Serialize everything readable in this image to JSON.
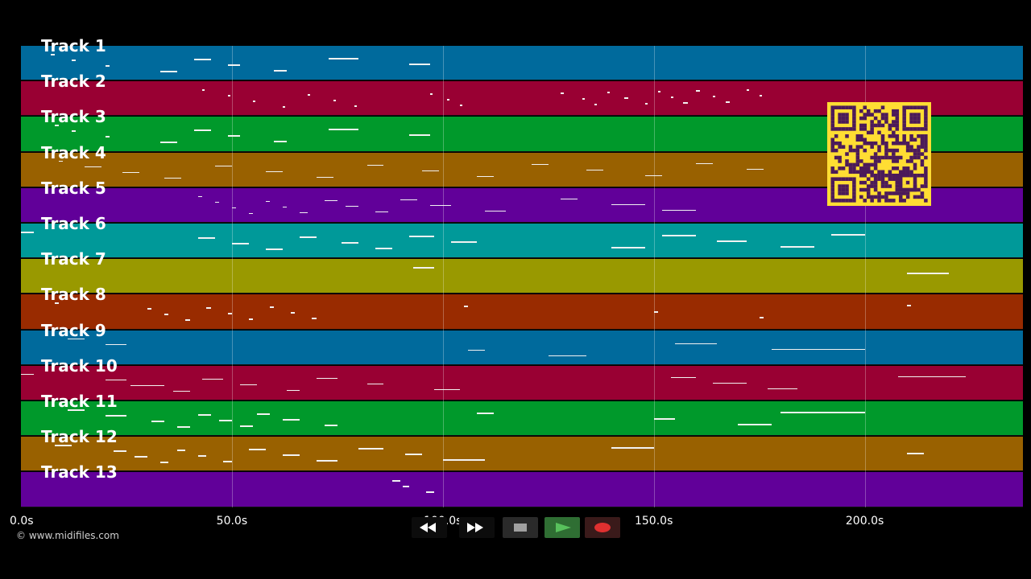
{
  "tracks": [
    {
      "label": "Track 1",
      "color": "#006a9c",
      "notes": [
        [
          7,
          8
        ],
        [
          12,
          13
        ],
        [
          20,
          21
        ],
        [
          33,
          37
        ],
        [
          41,
          45
        ],
        [
          49,
          52
        ],
        [
          60,
          63
        ],
        [
          73,
          80
        ],
        [
          92,
          97
        ]
      ]
    },
    {
      "label": "Track 2",
      "color": "#990033",
      "notes": [
        [
          43,
          43.6
        ],
        [
          49,
          49.6
        ],
        [
          55,
          55.6
        ],
        [
          62,
          62.6
        ],
        [
          68,
          68.6
        ],
        [
          74,
          74.6
        ],
        [
          79,
          79.6
        ],
        [
          97,
          97.6
        ],
        [
          101,
          101.6
        ],
        [
          104,
          104.6
        ],
        [
          128,
          128.6
        ],
        [
          133,
          133.6
        ],
        [
          136,
          136.6
        ],
        [
          139,
          139.6
        ],
        [
          143,
          144
        ],
        [
          148,
          148.6
        ],
        [
          151,
          151.6
        ],
        [
          154,
          154.6
        ],
        [
          157,
          158
        ],
        [
          160,
          161
        ],
        [
          164,
          164.6
        ],
        [
          167,
          168
        ],
        [
          172,
          172.6
        ],
        [
          175,
          175.6
        ]
      ]
    },
    {
      "label": "Track 3",
      "color": "#00992b",
      "notes": [
        [
          8,
          9
        ],
        [
          12,
          13
        ],
        [
          20,
          21
        ],
        [
          33,
          37
        ],
        [
          41,
          45
        ],
        [
          49,
          52
        ],
        [
          60,
          63
        ],
        [
          73,
          80
        ],
        [
          92,
          97
        ]
      ]
    },
    {
      "label": "Track 4",
      "color": "#996100",
      "notes": [
        [
          9,
          10
        ],
        [
          15,
          19
        ],
        [
          24,
          28
        ],
        [
          34,
          38
        ],
        [
          46,
          50
        ],
        [
          58,
          62
        ],
        [
          70,
          74
        ],
        [
          82,
          86
        ],
        [
          95,
          99
        ],
        [
          108,
          112
        ],
        [
          121,
          125
        ],
        [
          134,
          138
        ],
        [
          148,
          152
        ],
        [
          160,
          164
        ],
        [
          172,
          176
        ]
      ]
    },
    {
      "label": "Track 5",
      "color": "#610099",
      "notes": [
        [
          42,
          43
        ],
        [
          46,
          47
        ],
        [
          50,
          51
        ],
        [
          54,
          55
        ],
        [
          58,
          59
        ],
        [
          62,
          63
        ],
        [
          66,
          68
        ],
        [
          72,
          75
        ],
        [
          77,
          80
        ],
        [
          84,
          87
        ],
        [
          90,
          94
        ],
        [
          97,
          102
        ],
        [
          110,
          115
        ],
        [
          128,
          132
        ],
        [
          140,
          148
        ],
        [
          152,
          160
        ]
      ]
    },
    {
      "label": "Track 6",
      "color": "#009999",
      "notes": [
        [
          0,
          3
        ],
        [
          42,
          46
        ],
        [
          50,
          54
        ],
        [
          58,
          62
        ],
        [
          66,
          70
        ],
        [
          76,
          80
        ],
        [
          84,
          88
        ],
        [
          92,
          98
        ],
        [
          102,
          108
        ],
        [
          140,
          148
        ],
        [
          152,
          160
        ],
        [
          165,
          172
        ],
        [
          180,
          188
        ],
        [
          192,
          200
        ]
      ]
    },
    {
      "label": "Track 7",
      "color": "#999900",
      "notes": [
        [
          93,
          98
        ],
        [
          210,
          220
        ]
      ]
    },
    {
      "label": "Track 8",
      "color": "#992b00",
      "notes": [
        [
          8,
          9
        ],
        [
          30,
          31
        ],
        [
          34,
          35
        ],
        [
          39,
          40
        ],
        [
          44,
          45
        ],
        [
          49,
          50
        ],
        [
          54,
          55
        ],
        [
          59,
          60
        ],
        [
          64,
          65
        ],
        [
          69,
          70
        ],
        [
          105,
          106
        ],
        [
          150,
          151
        ],
        [
          175,
          176
        ],
        [
          210,
          211
        ]
      ]
    },
    {
      "label": "Track 9",
      "color": "#006a9c",
      "notes": [
        [
          11,
          15
        ],
        [
          20,
          25
        ],
        [
          106,
          110
        ],
        [
          125,
          134
        ],
        [
          155,
          165
        ],
        [
          178,
          200
        ]
      ]
    },
    {
      "label": "Track 10",
      "color": "#990033",
      "notes": [
        [
          0,
          3
        ],
        [
          20,
          25
        ],
        [
          26,
          34
        ],
        [
          36,
          40
        ],
        [
          43,
          48
        ],
        [
          52,
          56
        ],
        [
          63,
          66
        ],
        [
          70,
          75
        ],
        [
          82,
          86
        ],
        [
          98,
          104
        ],
        [
          154,
          160
        ],
        [
          164,
          172
        ],
        [
          177,
          184
        ],
        [
          208,
          224
        ]
      ]
    },
    {
      "label": "Track 11",
      "color": "#00992b",
      "notes": [
        [
          11,
          15
        ],
        [
          20,
          25
        ],
        [
          31,
          34
        ],
        [
          37,
          40
        ],
        [
          42,
          45
        ],
        [
          47,
          50
        ],
        [
          52,
          55
        ],
        [
          56,
          59
        ],
        [
          62,
          66
        ],
        [
          72,
          75
        ],
        [
          108,
          112
        ],
        [
          150,
          155
        ],
        [
          170,
          178
        ],
        [
          180,
          200
        ]
      ]
    },
    {
      "label": "Track 12",
      "color": "#996100",
      "notes": [
        [
          8,
          12
        ],
        [
          22,
          25
        ],
        [
          27,
          30
        ],
        [
          33,
          35
        ],
        [
          37,
          39
        ],
        [
          42,
          44
        ],
        [
          48,
          50
        ],
        [
          54,
          58
        ],
        [
          62,
          66
        ],
        [
          70,
          75
        ],
        [
          80,
          86
        ],
        [
          91,
          95
        ],
        [
          100,
          110
        ],
        [
          140,
          150
        ],
        [
          210,
          214
        ]
      ]
    },
    {
      "label": "Track 13",
      "color": "#610099",
      "notes": [
        [
          88,
          90
        ],
        [
          90.5,
          92
        ],
        [
          96,
          98
        ]
      ]
    }
  ],
  "timeline": {
    "max_seconds": 237.5,
    "ticks": [
      {
        "label": "0.0s",
        "value": 0
      },
      {
        "label": "50.0s",
        "value": 50
      },
      {
        "label": "100.0s",
        "value": 100
      },
      {
        "label": "150.0s",
        "value": 150
      },
      {
        "label": "200.0s",
        "value": 200
      }
    ]
  },
  "copyright": "© www.midifiles.com",
  "transport": {
    "rewind_icon": "rewind-icon",
    "fast_forward_icon": "fast-forward-icon",
    "stop_icon": "stop-icon",
    "play_icon": "play-icon",
    "record_icon": "record-icon",
    "play_color": "#58c15c",
    "record_color": "#e03030",
    "stop_color": "#a0a0a0"
  },
  "qr": {
    "icon": "qr-code-icon",
    "bg_color": "#ffdd33",
    "fg_color": "#4b1a5a"
  }
}
